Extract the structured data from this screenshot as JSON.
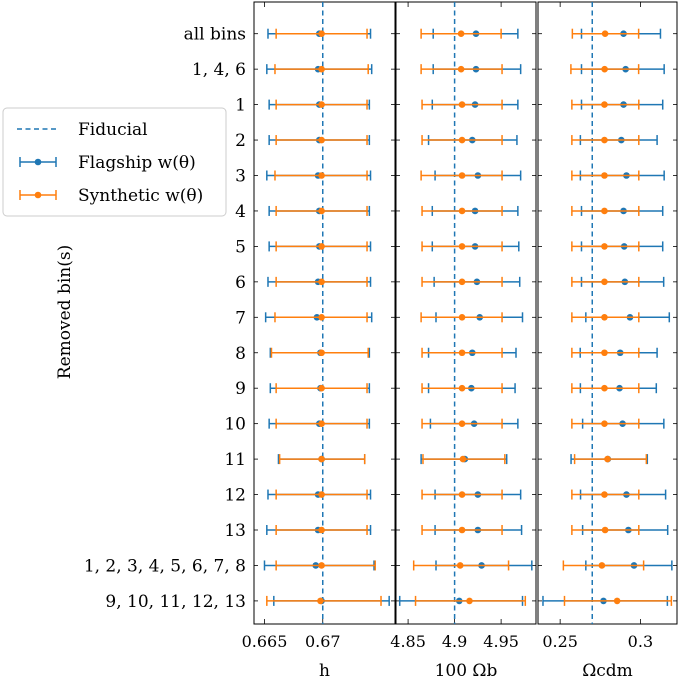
{
  "chart_data": {
    "type": "scatter",
    "ylabel": "Removed bin(s)",
    "rows": [
      "all bins",
      "1, 4, 6",
      "1",
      "2",
      "3",
      "4",
      "5",
      "6",
      "7",
      "8",
      "9",
      "10",
      "11",
      "12",
      "13",
      "1, 2, 3, 4, 5, 6, 7, 8",
      "9, 10, 11, 12, 13"
    ],
    "colors": {
      "flagship": "#1f77b4",
      "synthetic": "#ff7f0e"
    },
    "legend": {
      "placement": "center-left",
      "fiducial": "Fiducial",
      "flagship": "Flagship w(θ)",
      "synthetic": "Synthetic w(θ)"
    },
    "panels": [
      {
        "name": "h",
        "xlabel": "h",
        "xlim": [
          0.6641,
          0.6762
        ],
        "xticks": [
          0.665,
          0.67
        ],
        "xticklabels": [
          "0.665",
          "0.67"
        ],
        "fiducial": 0.67,
        "flagship": [
          {
            "v": 0.6697,
            "lo": 0.6653,
            "hi": 0.6741
          },
          {
            "v": 0.6696,
            "lo": 0.6652,
            "hi": 0.6742
          },
          {
            "v": 0.6697,
            "lo": 0.6654,
            "hi": 0.674
          },
          {
            "v": 0.6697,
            "lo": 0.6654,
            "hi": 0.674
          },
          {
            "v": 0.6696,
            "lo": 0.6652,
            "hi": 0.6741
          },
          {
            "v": 0.6697,
            "lo": 0.6654,
            "hi": 0.674
          },
          {
            "v": 0.6697,
            "lo": 0.6654,
            "hi": 0.6741
          },
          {
            "v": 0.6696,
            "lo": 0.6653,
            "hi": 0.6741
          },
          {
            "v": 0.6695,
            "lo": 0.6651,
            "hi": 0.6742
          },
          {
            "v": 0.6698,
            "lo": 0.6655,
            "hi": 0.674
          },
          {
            "v": 0.6698,
            "lo": 0.6655,
            "hi": 0.674
          },
          {
            "v": 0.6697,
            "lo": 0.6654,
            "hi": 0.674
          },
          {
            "v": 0.6699,
            "lo": 0.6662,
            "hi": 0.6736
          },
          {
            "v": 0.6696,
            "lo": 0.6653,
            "hi": 0.6741
          },
          {
            "v": 0.6696,
            "lo": 0.6652,
            "hi": 0.6741
          },
          {
            "v": 0.6694,
            "lo": 0.665,
            "hi": 0.6744
          },
          {
            "v": 0.6699,
            "lo": 0.6658,
            "hi": 0.6757
          }
        ],
        "synthetic": [
          {
            "v": 0.6699,
            "lo": 0.666,
            "hi": 0.6738
          },
          {
            "v": 0.6699,
            "lo": 0.6659,
            "hi": 0.6739
          },
          {
            "v": 0.6699,
            "lo": 0.666,
            "hi": 0.6738
          },
          {
            "v": 0.6699,
            "lo": 0.666,
            "hi": 0.6738
          },
          {
            "v": 0.6699,
            "lo": 0.6659,
            "hi": 0.6738
          },
          {
            "v": 0.6699,
            "lo": 0.666,
            "hi": 0.6738
          },
          {
            "v": 0.6699,
            "lo": 0.666,
            "hi": 0.6738
          },
          {
            "v": 0.6699,
            "lo": 0.666,
            "hi": 0.6738
          },
          {
            "v": 0.6699,
            "lo": 0.6659,
            "hi": 0.6738
          },
          {
            "v": 0.6699,
            "lo": 0.6656,
            "hi": 0.6739
          },
          {
            "v": 0.6699,
            "lo": 0.666,
            "hi": 0.6738
          },
          {
            "v": 0.6699,
            "lo": 0.666,
            "hi": 0.6738
          },
          {
            "v": 0.6699,
            "lo": 0.6663,
            "hi": 0.6736
          },
          {
            "v": 0.6699,
            "lo": 0.666,
            "hi": 0.6738
          },
          {
            "v": 0.6699,
            "lo": 0.666,
            "hi": 0.6738
          },
          {
            "v": 0.6699,
            "lo": 0.666,
            "hi": 0.6745
          },
          {
            "v": 0.6698,
            "lo": 0.6652,
            "hi": 0.675
          }
        ]
      },
      {
        "name": "omega_b",
        "xlabel": "100 Ωb",
        "xlim": [
          4.837,
          4.9875
        ],
        "xticks": [
          4.85,
          4.9,
          4.95
        ],
        "xticklabels": [
          "4.85",
          "4.9",
          "4.95"
        ],
        "fiducial": 4.9,
        "flagship": [
          {
            "v": 4.923,
            "lo": 4.877,
            "hi": 4.968
          },
          {
            "v": 4.923,
            "lo": 4.877,
            "hi": 4.971
          },
          {
            "v": 4.922,
            "lo": 4.876,
            "hi": 4.968
          },
          {
            "v": 4.919,
            "lo": 4.872,
            "hi": 4.967
          },
          {
            "v": 4.925,
            "lo": 4.879,
            "hi": 4.971
          },
          {
            "v": 4.922,
            "lo": 4.876,
            "hi": 4.968
          },
          {
            "v": 4.922,
            "lo": 4.876,
            "hi": 4.969
          },
          {
            "v": 4.924,
            "lo": 4.878,
            "hi": 4.97
          },
          {
            "v": 4.927,
            "lo": 4.88,
            "hi": 4.973
          },
          {
            "v": 4.919,
            "lo": 4.872,
            "hi": 4.966
          },
          {
            "v": 4.918,
            "lo": 4.872,
            "hi": 4.965
          },
          {
            "v": 4.921,
            "lo": 4.874,
            "hi": 4.968
          },
          {
            "v": 4.911,
            "lo": 4.864,
            "hi": 4.956
          },
          {
            "v": 4.925,
            "lo": 4.879,
            "hi": 4.971
          },
          {
            "v": 4.925,
            "lo": 4.879,
            "hi": 4.972
          },
          {
            "v": 4.929,
            "lo": 4.88,
            "hi": 4.983
          },
          {
            "v": 4.905,
            "lo": 4.841,
            "hi": 4.973
          }
        ],
        "synthetic": [
          {
            "v": 4.907,
            "lo": 4.864,
            "hi": 4.95
          },
          {
            "v": 4.907,
            "lo": 4.864,
            "hi": 4.951
          },
          {
            "v": 4.908,
            "lo": 4.865,
            "hi": 4.951
          },
          {
            "v": 4.908,
            "lo": 4.865,
            "hi": 4.951
          },
          {
            "v": 4.908,
            "lo": 4.864,
            "hi": 4.951
          },
          {
            "v": 4.908,
            "lo": 4.865,
            "hi": 4.951
          },
          {
            "v": 4.908,
            "lo": 4.865,
            "hi": 4.951
          },
          {
            "v": 4.908,
            "lo": 4.865,
            "hi": 4.951
          },
          {
            "v": 4.908,
            "lo": 4.864,
            "hi": 4.951
          },
          {
            "v": 4.908,
            "lo": 4.865,
            "hi": 4.951
          },
          {
            "v": 4.908,
            "lo": 4.865,
            "hi": 4.951
          },
          {
            "v": 4.908,
            "lo": 4.865,
            "hi": 4.951
          },
          {
            "v": 4.909,
            "lo": 4.866,
            "hi": 4.954
          },
          {
            "v": 4.908,
            "lo": 4.865,
            "hi": 4.951
          },
          {
            "v": 4.908,
            "lo": 4.865,
            "hi": 4.951
          },
          {
            "v": 4.906,
            "lo": 4.856,
            "hi": 4.958
          },
          {
            "v": 4.916,
            "lo": 4.858,
            "hi": 4.976
          }
        ]
      },
      {
        "name": "omega_cdm",
        "xlabel": "Ωcdm",
        "xlim": [
          0.2362,
          0.3228
        ],
        "xticks": [
          0.25,
          0.3
        ],
        "xticklabels": [
          "0.25",
          "0.3"
        ],
        "fiducial": 0.27,
        "flagship": [
          {
            "v": 0.2895,
            "lo": 0.2633,
            "hi": 0.3125
          },
          {
            "v": 0.2908,
            "lo": 0.2633,
            "hi": 0.3148
          },
          {
            "v": 0.2895,
            "lo": 0.2633,
            "hi": 0.3139
          },
          {
            "v": 0.2881,
            "lo": 0.2626,
            "hi": 0.3104
          },
          {
            "v": 0.2913,
            "lo": 0.2626,
            "hi": 0.3148
          },
          {
            "v": 0.2895,
            "lo": 0.2633,
            "hi": 0.3139
          },
          {
            "v": 0.2899,
            "lo": 0.2633,
            "hi": 0.3139
          },
          {
            "v": 0.2903,
            "lo": 0.2633,
            "hi": 0.3145
          },
          {
            "v": 0.2935,
            "lo": 0.266,
            "hi": 0.318
          },
          {
            "v": 0.2874,
            "lo": 0.2625,
            "hi": 0.3104
          },
          {
            "v": 0.287,
            "lo": 0.2626,
            "hi": 0.3099
          },
          {
            "v": 0.2889,
            "lo": 0.264,
            "hi": 0.3146
          },
          {
            "v": 0.2797,
            "lo": 0.2568,
            "hi": 0.3043
          },
          {
            "v": 0.2913,
            "lo": 0.2627,
            "hi": 0.3157
          },
          {
            "v": 0.2925,
            "lo": 0.264,
            "hi": 0.317
          },
          {
            "v": 0.296,
            "lo": 0.266,
            "hi": 0.3196
          },
          {
            "v": 0.277,
            "lo": 0.2393,
            "hi": 0.3168
          }
        ],
        "synthetic": [
          {
            "v": 0.278,
            "lo": 0.2576,
            "hi": 0.2989
          },
          {
            "v": 0.2777,
            "lo": 0.2567,
            "hi": 0.2989
          },
          {
            "v": 0.2776,
            "lo": 0.2573,
            "hi": 0.299
          },
          {
            "v": 0.2776,
            "lo": 0.2573,
            "hi": 0.299
          },
          {
            "v": 0.2776,
            "lo": 0.2573,
            "hi": 0.299
          },
          {
            "v": 0.2776,
            "lo": 0.2573,
            "hi": 0.299
          },
          {
            "v": 0.2776,
            "lo": 0.2573,
            "hi": 0.299
          },
          {
            "v": 0.2776,
            "lo": 0.2573,
            "hi": 0.299
          },
          {
            "v": 0.2776,
            "lo": 0.2573,
            "hi": 0.299
          },
          {
            "v": 0.2776,
            "lo": 0.2573,
            "hi": 0.299
          },
          {
            "v": 0.2776,
            "lo": 0.2573,
            "hi": 0.299
          },
          {
            "v": 0.2776,
            "lo": 0.2573,
            "hi": 0.299
          },
          {
            "v": 0.2795,
            "lo": 0.259,
            "hi": 0.3037
          },
          {
            "v": 0.2776,
            "lo": 0.2573,
            "hi": 0.299
          },
          {
            "v": 0.278,
            "lo": 0.2573,
            "hi": 0.299
          },
          {
            "v": 0.276,
            "lo": 0.252,
            "hi": 0.302
          },
          {
            "v": 0.2855,
            "lo": 0.2527,
            "hi": 0.3193
          }
        ]
      }
    ]
  }
}
